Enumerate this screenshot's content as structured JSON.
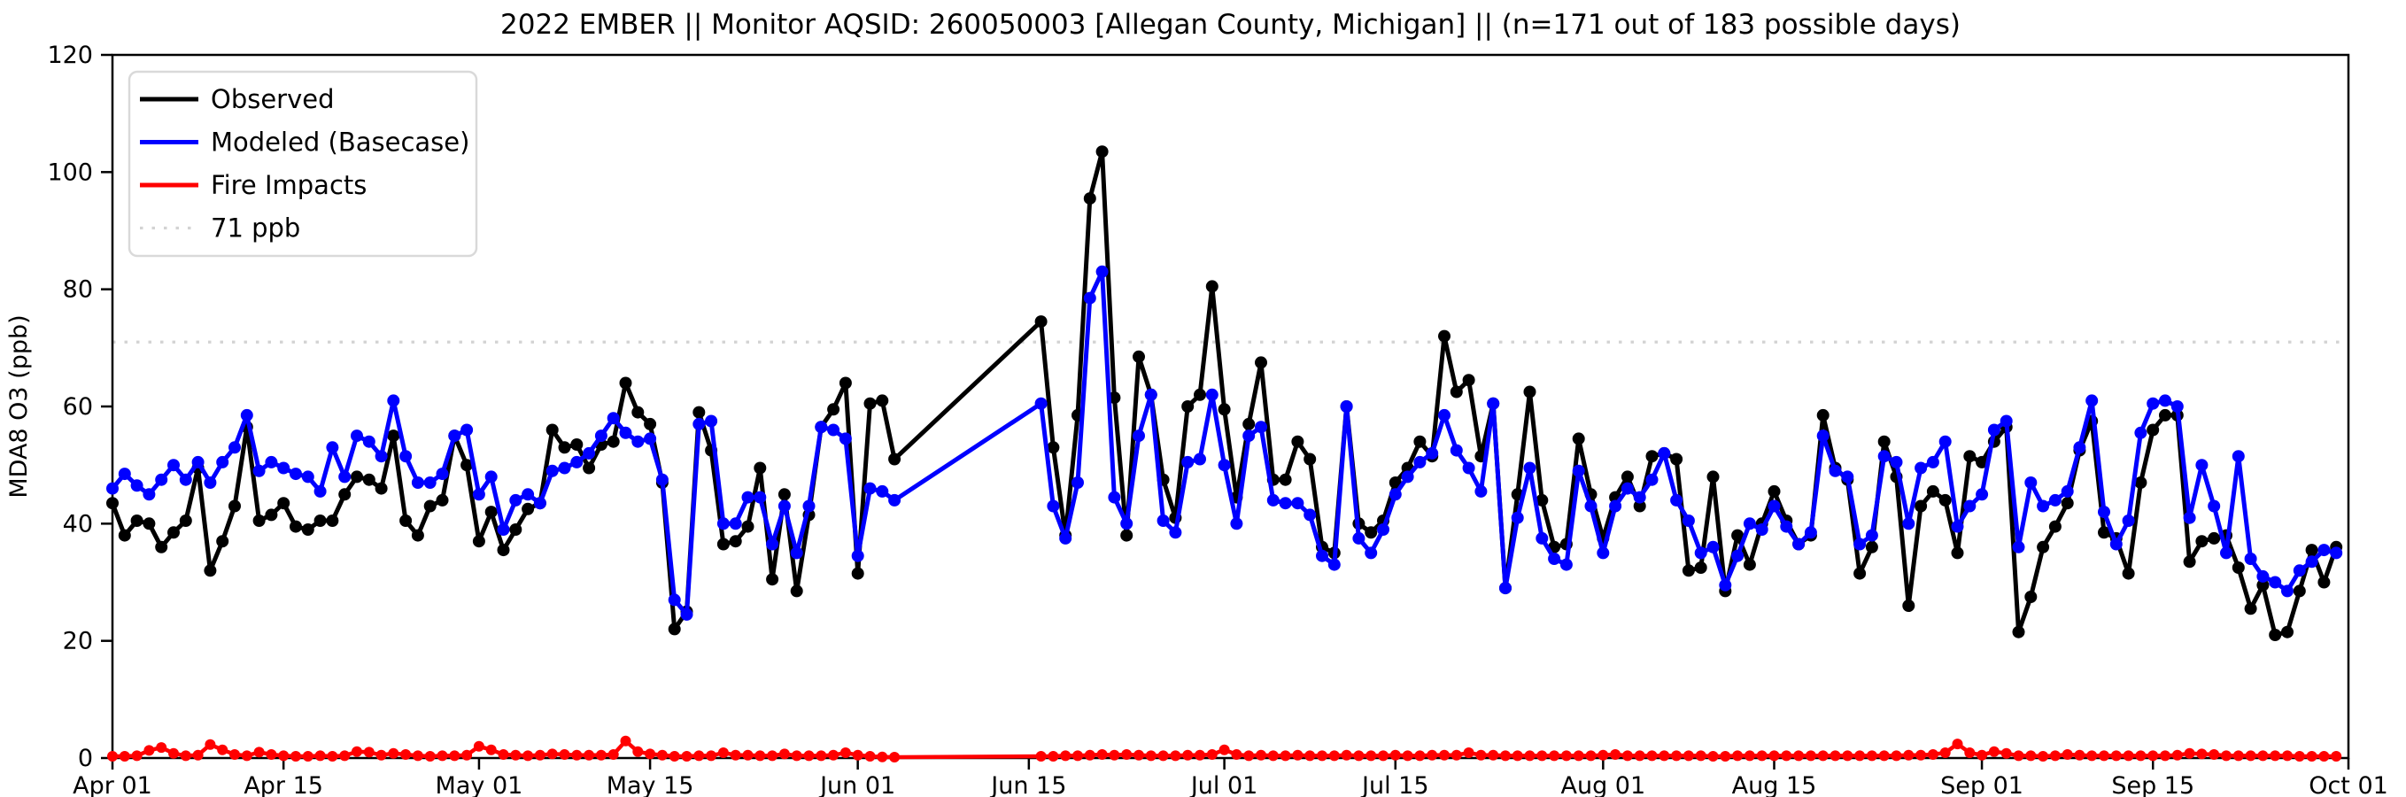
{
  "chart_data": {
    "type": "line",
    "title": "2022 EMBER || Monitor AQSID: 260050003 [Allegan County, Michigan] || (n=171 out of 183 possible days)",
    "ylabel": "MDA8 O3 (ppb)",
    "ylim": [
      0,
      120
    ],
    "y_tick_values": [
      0,
      20,
      40,
      60,
      80,
      100,
      120
    ],
    "y_tick_labels": [
      "0",
      "20",
      "40",
      "60",
      "80",
      "100",
      "120"
    ],
    "x_tick_labels": [
      "Apr 01",
      "Apr 15",
      "May 01",
      "May 15",
      "Jun 01",
      "Jun 15",
      "Jul 01",
      "Jul 15",
      "Aug 01",
      "Aug 15",
      "Sep 01",
      "Sep 15",
      "Oct 01"
    ],
    "x_tick_day_index": [
      0,
      14,
      30,
      44,
      61,
      75,
      91,
      105,
      122,
      136,
      153,
      167,
      183
    ],
    "start_date": "2022-04-01",
    "days_total": 183,
    "days_with_data": 171,
    "grid": false,
    "legend_position": "upper left",
    "threshold": {
      "value": 71,
      "label": "71 ppb",
      "color": "#d3d3d3"
    },
    "colors": {
      "observed": "#000000",
      "modeled": "#0000ff",
      "fire": "#ff0000",
      "threshold": "#d3d3d3",
      "frame": "#000000",
      "background": "#ffffff"
    },
    "legend_entries": [
      {
        "label": "Observed",
        "color": "#000000",
        "style": "solid"
      },
      {
        "label": "Modeled (Basecase)",
        "color": "#0000ff",
        "style": "solid"
      },
      {
        "label": "Fire Impacts",
        "color": "#ff0000",
        "style": "solid"
      },
      {
        "label": "71 ppb",
        "color": "#d3d3d3",
        "style": "dotted"
      }
    ],
    "series": [
      {
        "name": "Observed",
        "color": "#000000",
        "marker_radius": 7,
        "line_width": 5,
        "values": [
          43.5,
          38,
          40.5,
          40,
          36,
          38.5,
          40.5,
          49.5,
          32,
          37,
          43,
          56.5,
          40.5,
          41.5,
          43.5,
          39.5,
          39,
          40.5,
          40.5,
          45,
          48,
          47.5,
          46,
          55,
          40.5,
          38,
          43,
          44,
          55,
          50,
          37,
          42,
          35.5,
          39,
          42.5,
          43.5,
          56,
          53,
          53.5,
          49.5,
          53.5,
          54,
          64,
          59,
          57,
          47,
          22,
          25,
          59,
          52.5,
          36.5,
          37,
          39.5,
          49.5,
          30.5,
          45,
          28.5,
          41.5,
          56.5,
          59.5,
          64,
          31.5,
          60.5,
          61,
          51,
          null,
          null,
          null,
          null,
          null,
          null,
          null,
          null,
          null,
          null,
          null,
          74.5,
          53,
          38,
          58.5,
          95.5,
          103.5,
          61.5,
          38,
          68.5,
          62,
          47.5,
          41,
          60,
          62,
          80.5,
          59.5,
          44.5,
          57,
          67.5,
          47.5,
          47.5,
          54,
          51,
          36,
          35,
          60,
          40,
          38.5,
          40.5,
          47,
          49.5,
          54,
          51.5,
          72,
          62.5,
          64.5,
          51.5,
          60.5,
          29,
          45,
          62.5,
          44,
          36,
          36.5,
          54.5,
          45,
          37.5,
          44.5,
          48,
          43,
          51.5,
          52,
          51,
          32,
          32.5,
          48,
          28.5,
          38,
          33,
          40,
          45.5,
          40.5,
          36.5,
          38,
          58.5,
          49.5,
          47.5,
          31.5,
          36,
          54,
          48,
          26,
          43,
          45.5,
          44,
          35,
          51.5,
          50.5,
          54,
          56.5,
          21.5,
          27.5,
          36,
          39.5,
          43.5,
          52.5,
          57.5,
          38.5,
          37.5,
          31.5,
          47,
          56,
          58.5,
          58.5,
          33.5,
          37,
          37.5,
          38,
          32.5,
          25.5,
          29.5,
          21,
          21.5,
          28.5,
          35.5,
          30,
          36
        ]
      },
      {
        "name": "Modeled (Basecase)",
        "color": "#0000ff",
        "marker_radius": 7,
        "line_width": 5,
        "values": [
          46,
          48.5,
          46.5,
          45,
          47.5,
          50,
          47.5,
          50.5,
          47,
          50.5,
          53,
          58.5,
          49,
          50.5,
          49.5,
          48.5,
          48,
          45.5,
          53,
          48,
          55,
          54,
          51.5,
          61,
          51.5,
          47,
          47,
          48.5,
          55,
          56,
          45,
          48,
          39,
          44,
          45,
          43.5,
          49,
          49.5,
          50.5,
          52,
          55,
          58,
          55.5,
          54,
          54.5,
          47.5,
          27,
          24.5,
          57,
          57.5,
          40,
          40,
          44.5,
          44.5,
          36.5,
          43,
          35,
          43,
          56.5,
          56,
          54.5,
          34.5,
          46,
          45.5,
          44,
          null,
          null,
          null,
          null,
          null,
          null,
          null,
          null,
          null,
          null,
          null,
          60.5,
          43,
          37.5,
          47,
          78.5,
          83,
          44.5,
          40,
          55,
          62,
          40.5,
          38.5,
          50.5,
          51,
          62,
          50,
          40,
          55,
          56.5,
          44,
          43.5,
          43.5,
          41.5,
          34.5,
          33,
          60,
          37.5,
          35,
          39,
          45,
          48,
          50.5,
          52,
          58.5,
          52.5,
          49.5,
          45.5,
          60.5,
          29,
          41,
          49.5,
          37.5,
          34,
          33,
          49,
          43,
          35,
          43,
          46,
          44.5,
          47.5,
          52,
          44,
          40.5,
          35,
          36,
          29.5,
          34.5,
          40,
          39,
          43,
          39.5,
          36.5,
          38.5,
          55,
          49,
          48,
          36.5,
          38,
          51.5,
          50.5,
          40,
          49.5,
          50.5,
          54,
          39.5,
          43,
          45,
          56,
          57.5,
          36,
          47,
          43,
          44,
          45.5,
          53,
          61,
          42,
          36.5,
          40.5,
          55.5,
          60.5,
          61,
          60,
          41,
          50,
          43,
          35,
          51.5,
          34,
          31,
          30,
          28.5,
          32,
          33.5,
          35.5,
          35
        ]
      },
      {
        "name": "Fire Impacts",
        "color": "#ff0000",
        "marker_radius": 6,
        "line_width": 4.5,
        "values": [
          0.3,
          0.3,
          0.4,
          1.3,
          1.8,
          0.8,
          0.4,
          0.5,
          2.3,
          1.4,
          0.6,
          0.4,
          1.0,
          0.6,
          0.4,
          0.3,
          0.3,
          0.4,
          0.3,
          0.4,
          1.1,
          1.0,
          0.5,
          0.8,
          0.6,
          0.4,
          0.3,
          0.4,
          0.4,
          0.5,
          2.0,
          1.4,
          0.6,
          0.5,
          0.4,
          0.5,
          0.7,
          0.6,
          0.5,
          0.5,
          0.5,
          0.6,
          2.9,
          1.1,
          0.7,
          0.5,
          0.3,
          0.3,
          0.4,
          0.4,
          0.9,
          0.5,
          0.5,
          0.4,
          0.4,
          0.7,
          0.4,
          0.4,
          0.4,
          0.5,
          0.9,
          0.5,
          0.3,
          0.2,
          0.15,
          null,
          null,
          null,
          null,
          null,
          null,
          null,
          null,
          null,
          null,
          null,
          0.3,
          0.3,
          0.4,
          0.4,
          0.5,
          0.6,
          0.5,
          0.6,
          0.5,
          0.4,
          0.4,
          0.4,
          0.5,
          0.5,
          0.6,
          1.4,
          0.6,
          0.4,
          0.5,
          0.4,
          0.4,
          0.5,
          0.4,
          0.4,
          0.4,
          0.5,
          0.4,
          0.4,
          0.4,
          0.5,
          0.4,
          0.4,
          0.5,
          0.5,
          0.5,
          0.9,
          0.5,
          0.5,
          0.4,
          0.4,
          0.4,
          0.4,
          0.4,
          0.4,
          0.4,
          0.4,
          0.5,
          0.6,
          0.4,
          0.4,
          0.4,
          0.4,
          0.4,
          0.4,
          0.4,
          0.3,
          0.3,
          0.4,
          0.4,
          0.4,
          0.4,
          0.4,
          0.4,
          0.4,
          0.4,
          0.4,
          0.4,
          0.4,
          0.4,
          0.4,
          0.4,
          0.5,
          0.5,
          0.6,
          0.9,
          2.4,
          0.9,
          0.5,
          1.1,
          0.8,
          0.4,
          0.4,
          0.3,
          0.4,
          0.6,
          0.5,
          0.4,
          0.4,
          0.4,
          0.4,
          0.4,
          0.4,
          0.4,
          0.5,
          0.8,
          0.7,
          0.6,
          0.4,
          0.4,
          0.4,
          0.4,
          0.4,
          0.4,
          0.3,
          0.3,
          0.3,
          0.3
        ]
      }
    ]
  }
}
